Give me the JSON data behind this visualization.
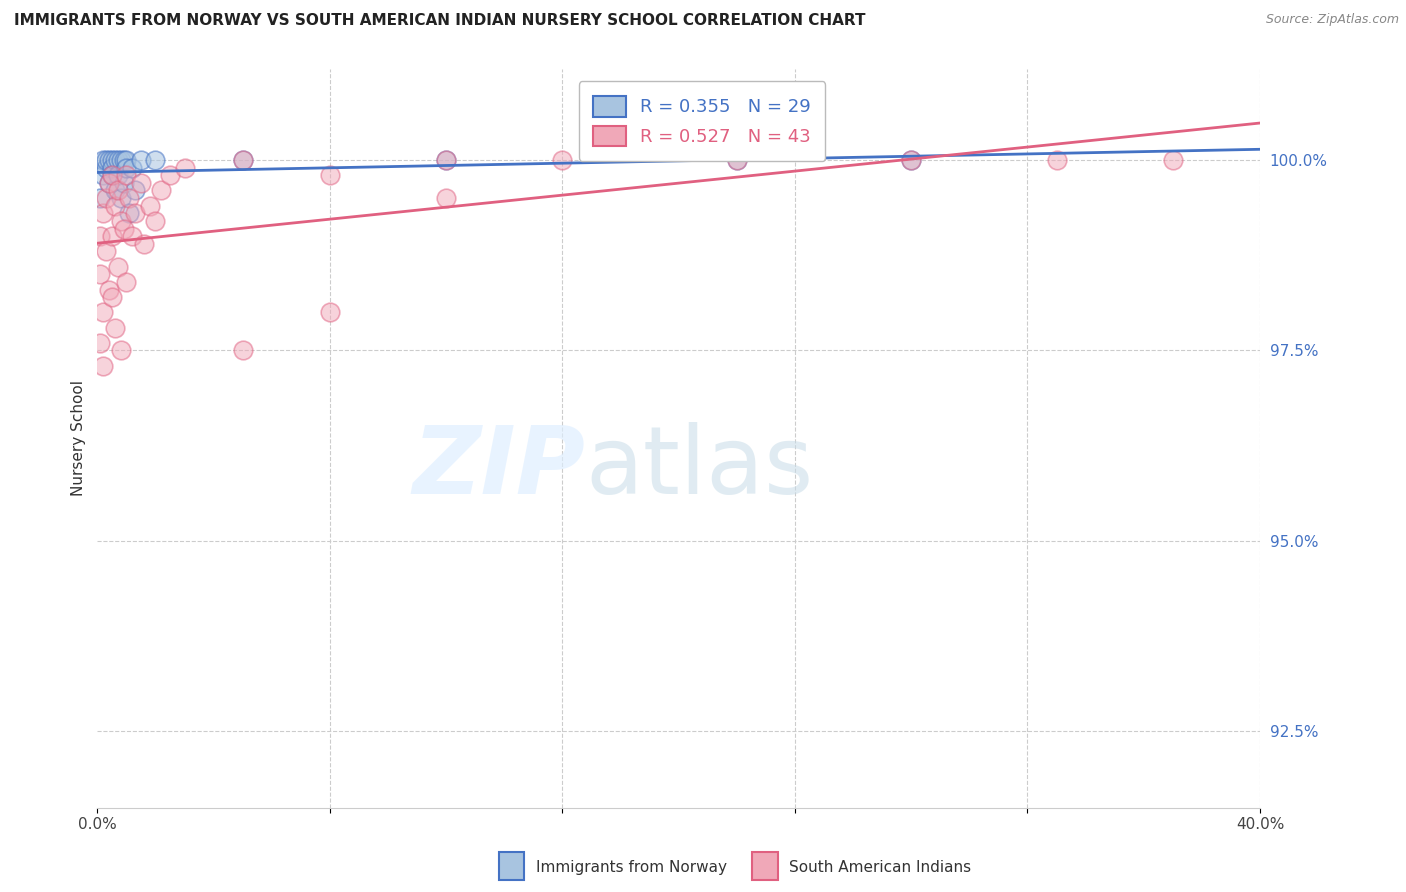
{
  "title": "IMMIGRANTS FROM NORWAY VS SOUTH AMERICAN INDIAN NURSERY SCHOOL CORRELATION CHART",
  "source": "Source: ZipAtlas.com",
  "ylabel": "Nursery School",
  "yaxis_values": [
    100.0,
    97.5,
    95.0,
    92.5
  ],
  "legend_norway": "Immigrants from Norway",
  "legend_indian": "South American Indians",
  "r_norway": 0.355,
  "n_norway": 29,
  "r_indian": 0.527,
  "n_indian": 43,
  "norway_color": "#a8c4e0",
  "indian_color": "#f0a8b8",
  "norway_line_color": "#4472C4",
  "indian_line_color": "#E06080",
  "norway_x": [
    0.001,
    0.002,
    0.002,
    0.003,
    0.003,
    0.004,
    0.004,
    0.005,
    0.005,
    0.005,
    0.006,
    0.006,
    0.007,
    0.007,
    0.008,
    0.008,
    0.009,
    0.009,
    0.01,
    0.01,
    0.011,
    0.012,
    0.013,
    0.015,
    0.02,
    0.05,
    0.12,
    0.22,
    0.28
  ],
  "norway_y": [
    99.5,
    99.8,
    100.0,
    99.9,
    100.0,
    100.0,
    99.7,
    100.0,
    99.9,
    99.8,
    100.0,
    99.6,
    100.0,
    99.8,
    100.0,
    99.5,
    100.0,
    99.7,
    100.0,
    99.9,
    99.3,
    99.9,
    99.6,
    100.0,
    100.0,
    100.0,
    100.0,
    100.0,
    100.0
  ],
  "indian_x": [
    0.001,
    0.001,
    0.002,
    0.002,
    0.003,
    0.003,
    0.004,
    0.004,
    0.005,
    0.005,
    0.005,
    0.006,
    0.006,
    0.007,
    0.007,
    0.008,
    0.008,
    0.009,
    0.01,
    0.01,
    0.011,
    0.012,
    0.013,
    0.015,
    0.016,
    0.018,
    0.02,
    0.022,
    0.025,
    0.03,
    0.05,
    0.08,
    0.12,
    0.16,
    0.22,
    0.28,
    0.33,
    0.37,
    0.001,
    0.002,
    0.05,
    0.08,
    0.12
  ],
  "indian_y": [
    99.0,
    98.5,
    99.3,
    98.0,
    99.5,
    98.8,
    99.7,
    98.3,
    99.8,
    99.0,
    98.2,
    99.4,
    97.8,
    99.6,
    98.6,
    99.2,
    97.5,
    99.1,
    99.8,
    98.4,
    99.5,
    99.0,
    99.3,
    99.7,
    98.9,
    99.4,
    99.2,
    99.6,
    99.8,
    99.9,
    100.0,
    99.8,
    100.0,
    100.0,
    100.0,
    100.0,
    100.0,
    100.0,
    97.6,
    97.3,
    97.5,
    98.0,
    99.5
  ],
  "xlim": [
    0.0,
    0.4
  ],
  "ylim": [
    91.5,
    101.2
  ]
}
